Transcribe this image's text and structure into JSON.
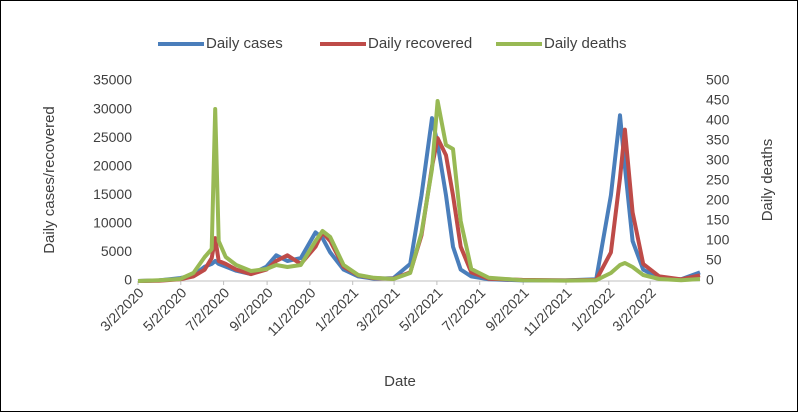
{
  "chart_data": {
    "type": "line",
    "x_label": "Date",
    "y_label": "Daily cases/recovered",
    "y2_label": "Daily deaths",
    "legend": "top",
    "x": [
      "3/2/2020",
      "4/1/2020",
      "5/1/2020",
      "5/20/2020",
      "6/5/2020",
      "6/15/2020",
      "6/20/2020",
      "6/25/2020",
      "7/5/2020",
      "7/20/2020",
      "8/10/2020",
      "9/1/2020",
      "9/15/2020",
      "10/1/2020",
      "10/20/2020",
      "11/10/2020",
      "11/20/2020",
      "12/1/2020",
      "12/20/2020",
      "1/10/2021",
      "2/1/2021",
      "3/1/2021",
      "3/25/2021",
      "4/10/2021",
      "4/25/2021",
      "5/3/2021",
      "5/15/2021",
      "5/25/2021",
      "6/5/2021",
      "6/20/2021",
      "7/15/2021",
      "9/1/2021",
      "11/1/2021",
      "12/15/2021",
      "1/5/2022",
      "1/18/2022",
      "1/25/2022",
      "2/5/2022",
      "2/20/2022",
      "3/15/2022",
      "4/15/2022",
      "5/12/2022"
    ],
    "xlim": [
      "3/2/2020",
      "5/12/2022"
    ],
    "xticks": [
      "3/2/2020",
      "5/2/2020",
      "7/2/2020",
      "9/2/2020",
      "11/2/2020",
      "1/2/2021",
      "3/2/2021",
      "5/2/2021",
      "7/2/2021",
      "9/2/2021",
      "11/2/2021",
      "1/2/2022",
      "3/2/2022"
    ],
    "ylim": [
      0,
      35000
    ],
    "yticks": [
      0,
      5000,
      10000,
      15000,
      20000,
      25000,
      30000,
      35000
    ],
    "y2lim": [
      0,
      500
    ],
    "y2ticks": [
      0,
      50,
      100,
      150,
      200,
      250,
      300,
      350,
      400,
      450,
      500
    ],
    "series": [
      {
        "name": "Daily cases",
        "color": "#4a7ebb",
        "values": [
          0,
          100,
          500,
          1000,
          2500,
          3000,
          3500,
          3000,
          2500,
          1800,
          1200,
          2500,
          4500,
          3500,
          4000,
          8500,
          7500,
          5000,
          2000,
          800,
          400,
          500,
          3000,
          15000,
          28500,
          24000,
          15000,
          6000,
          2000,
          800,
          300,
          100,
          100,
          300,
          15000,
          29000,
          20000,
          7000,
          2000,
          500,
          300,
          1500
        ]
      },
      {
        "name": "Daily recovered",
        "color": "#be4b48",
        "values": [
          0,
          50,
          300,
          800,
          2000,
          4000,
          7500,
          3500,
          3000,
          2000,
          1200,
          2000,
          3500,
          4500,
          3000,
          6000,
          8500,
          7000,
          2500,
          1000,
          500,
          400,
          1500,
          8000,
          20000,
          25000,
          22000,
          15000,
          6000,
          1500,
          400,
          200,
          100,
          200,
          5000,
          18000,
          26500,
          12000,
          3000,
          800,
          300,
          1000
        ]
      },
      {
        "name": "Daily deaths",
        "color": "#98b954",
        "axis": "y2",
        "values": [
          0,
          2,
          5,
          20,
          60,
          80,
          430,
          100,
          60,
          40,
          25,
          30,
          40,
          35,
          40,
          100,
          125,
          110,
          40,
          15,
          8,
          5,
          20,
          120,
          280,
          450,
          340,
          330,
          150,
          30,
          8,
          2,
          1,
          2,
          20,
          40,
          45,
          35,
          15,
          5,
          2,
          5
        ]
      }
    ]
  }
}
